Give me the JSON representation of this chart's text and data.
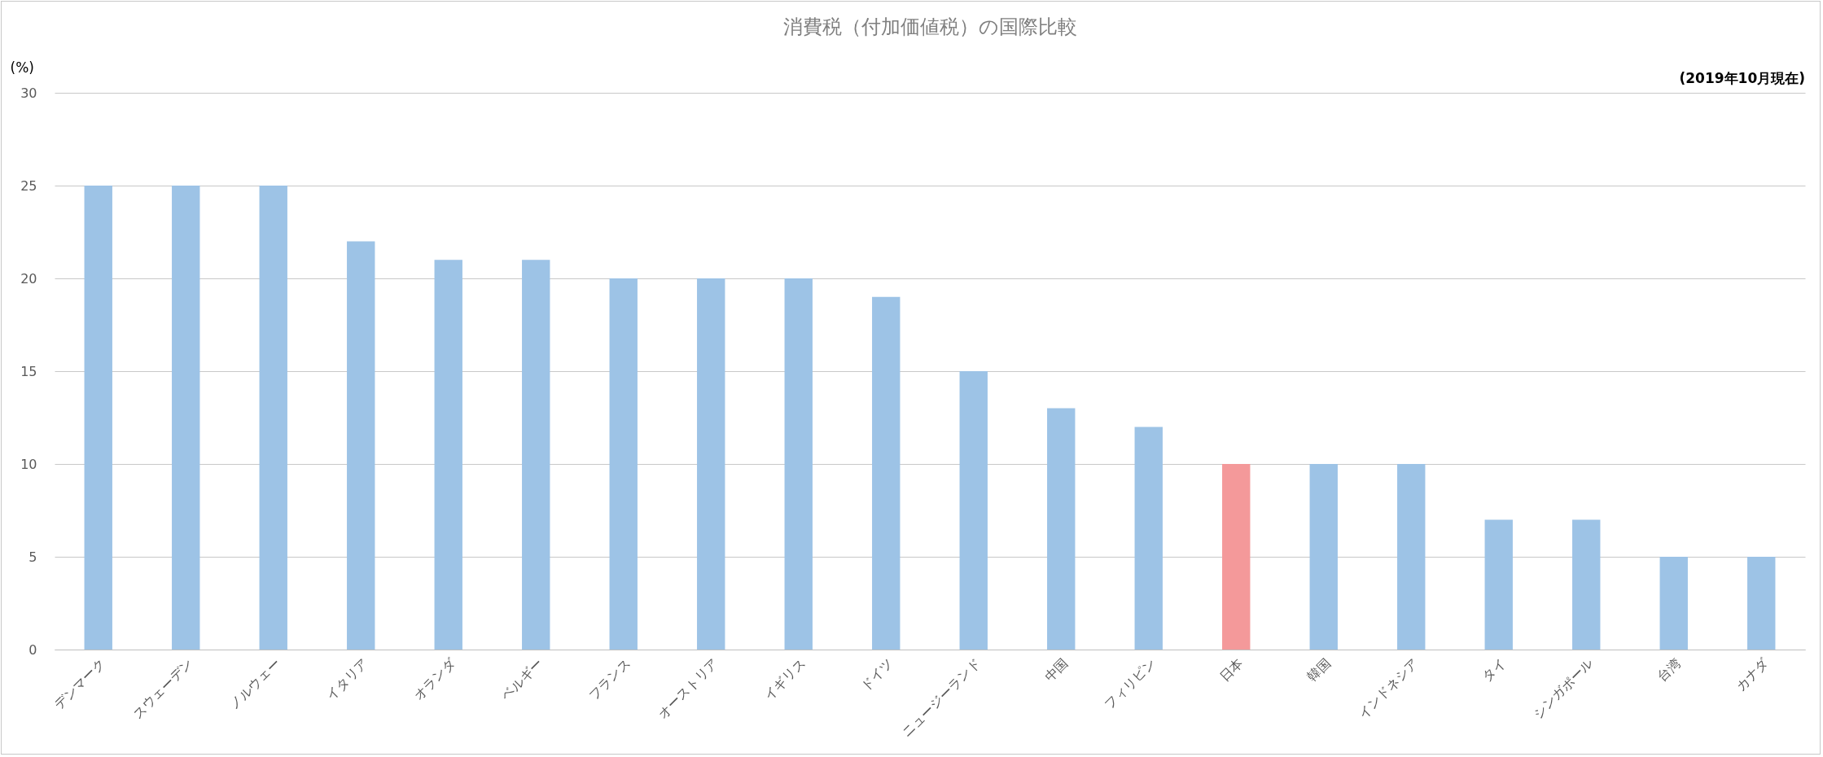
{
  "chart_data": {
    "type": "bar",
    "title": "消費税（付加価値税）の国際比較",
    "ylabel": "(%)",
    "annotations": [
      "(2019年10月現在)"
    ],
    "categories": [
      "デンマーク",
      "スウェーデン",
      "ノルウェー",
      "イタリア",
      "オランダ",
      "ベルギー",
      "フランス",
      "オーストリア",
      "イギリス",
      "ドイツ",
      "ニュージーランド",
      "中国",
      "フィリピン",
      "日本",
      "韓国",
      "インドネシア",
      "タイ",
      "シンガポール",
      "台湾",
      "カナダ"
    ],
    "values": [
      25,
      25,
      25,
      22,
      21,
      21,
      20,
      20,
      20,
      19,
      15,
      13,
      12,
      10,
      10,
      10,
      7,
      7,
      5,
      5
    ],
    "colors": [
      "#9dc3e6",
      "#9dc3e6",
      "#9dc3e6",
      "#9dc3e6",
      "#9dc3e6",
      "#9dc3e6",
      "#9dc3e6",
      "#9dc3e6",
      "#9dc3e6",
      "#9dc3e6",
      "#9dc3e6",
      "#9dc3e6",
      "#9dc3e6",
      "#f4999a",
      "#9dc3e6",
      "#9dc3e6",
      "#9dc3e6",
      "#9dc3e6",
      "#9dc3e6",
      "#9dc3e6"
    ],
    "ylim": [
      0,
      30
    ],
    "yticks": [
      0,
      5,
      10,
      15,
      20,
      25,
      30
    ],
    "grid": "y"
  }
}
